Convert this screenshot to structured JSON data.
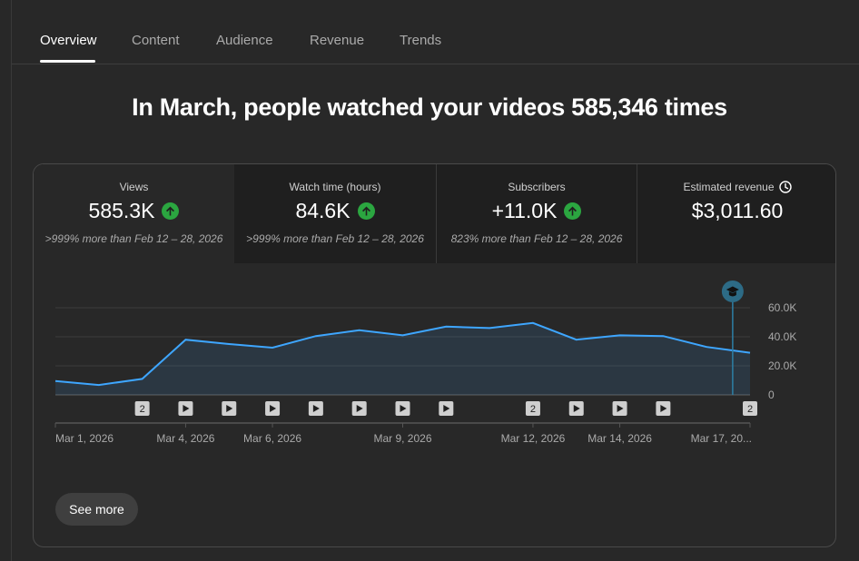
{
  "tabs": [
    {
      "label": "Overview",
      "active": true
    },
    {
      "label": "Content",
      "active": false
    },
    {
      "label": "Audience",
      "active": false
    },
    {
      "label": "Revenue",
      "active": false
    },
    {
      "label": "Trends",
      "active": false
    }
  ],
  "headline": "In March, people watched your videos 585,346 times",
  "metrics": [
    {
      "title": "Views",
      "value": "585.3K",
      "trend": "up",
      "compare": ">999% more than Feb 12 – 28, 2026"
    },
    {
      "title": "Watch time (hours)",
      "value": "84.6K",
      "trend": "up",
      "compare": ">999% more than Feb 12 – 28, 2026"
    },
    {
      "title": "Subscribers",
      "value": "+11.0K",
      "trend": "up",
      "compare": "823% more than Feb 12 – 28, 2026"
    },
    {
      "title": "Estimated revenue",
      "value": "$3,011.60",
      "icon": "clock-icon"
    }
  ],
  "chart_data": {
    "type": "area",
    "x": [
      "Mar 1, 2026",
      "Mar 2, 2026",
      "Mar 3, 2026",
      "Mar 4, 2026",
      "Mar 5, 2026",
      "Mar 6, 2026",
      "Mar 7, 2026",
      "Mar 8, 2026",
      "Mar 9, 2026",
      "Mar 10, 2026",
      "Mar 11, 2026",
      "Mar 12, 2026",
      "Mar 13, 2026",
      "Mar 14, 2026",
      "Mar 15, 2026",
      "Mar 16, 2026",
      "Mar 17, 2026"
    ],
    "values": [
      9500,
      6800,
      11000,
      38000,
      35000,
      32500,
      40500,
      44500,
      41000,
      47000,
      46000,
      49500,
      38000,
      41000,
      40500,
      33000,
      29000
    ],
    "ylim": [
      0,
      60000
    ],
    "yticks": [
      "60.0K",
      "40.0K",
      "20.0K",
      "0"
    ],
    "ytick_values": [
      60000,
      40000,
      20000,
      0
    ],
    "xtick_labels": [
      {
        "index": 0,
        "label": "Mar 1, 2026"
      },
      {
        "index": 3,
        "label": "Mar 4, 2026"
      },
      {
        "index": 5,
        "label": "Mar 6, 2026"
      },
      {
        "index": 8,
        "label": "Mar 9, 2026"
      },
      {
        "index": 11,
        "label": "Mar 12, 2026"
      },
      {
        "index": 13,
        "label": "Mar 14, 2026"
      },
      {
        "index": 16,
        "label": "Mar 17, 20..."
      }
    ],
    "upload_markers": [
      {
        "index": 2,
        "kind": "count",
        "label": "2"
      },
      {
        "index": 3,
        "kind": "play"
      },
      {
        "index": 4,
        "kind": "play"
      },
      {
        "index": 5,
        "kind": "play"
      },
      {
        "index": 6,
        "kind": "play"
      },
      {
        "index": 7,
        "kind": "play"
      },
      {
        "index": 8,
        "kind": "play"
      },
      {
        "index": 9,
        "kind": "play"
      },
      {
        "index": 11,
        "kind": "count",
        "label": "2"
      },
      {
        "index": 12,
        "kind": "play"
      },
      {
        "index": 13,
        "kind": "play"
      },
      {
        "index": 14,
        "kind": "play"
      },
      {
        "index": 16,
        "kind": "count",
        "label": "2"
      }
    ],
    "event_marker": {
      "index": 15.6,
      "icon": "graduation-cap-icon"
    },
    "line_color": "#3ea6ff",
    "grid": true
  },
  "see_more_label": "See more",
  "colors": {
    "accent_up": "#2ba640",
    "line": "#3ea6ff",
    "event": "#2d6b86"
  }
}
